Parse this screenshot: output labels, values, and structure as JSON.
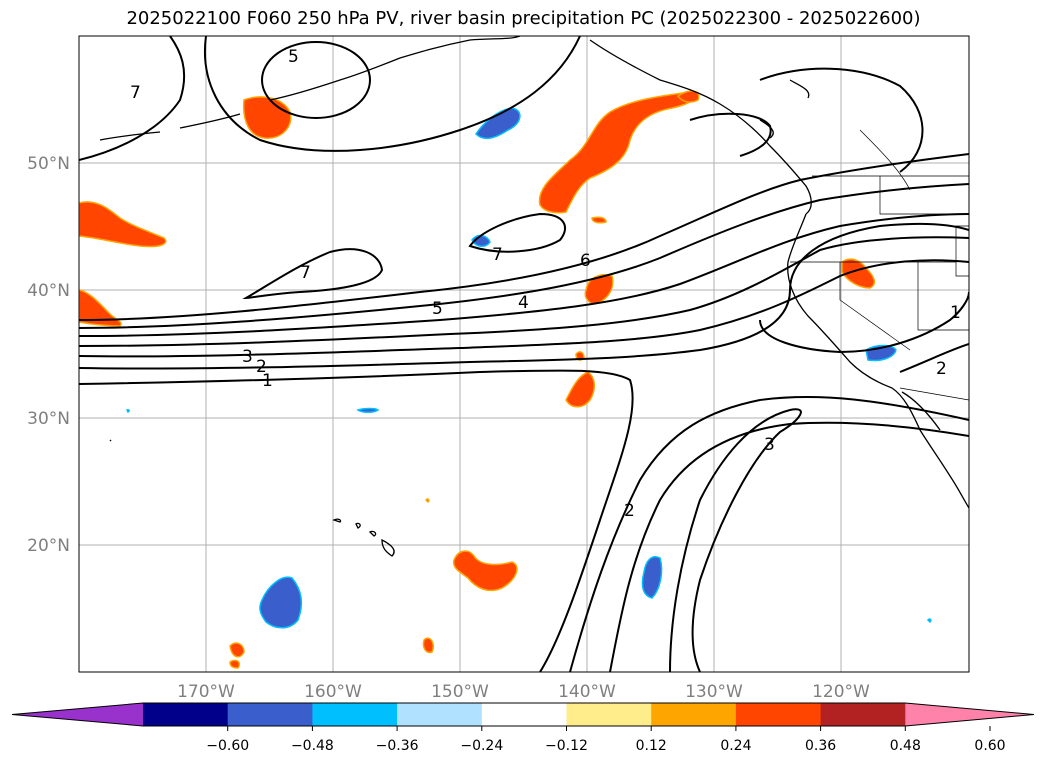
{
  "title": "2025022100 F060 250 hPa PV, river basin precipitation PC (2025022300 - 2025022600)",
  "longitude_labels": [
    "170°W",
    "160°W",
    "150°W",
    "140°W",
    "130°W",
    "120°W"
  ],
  "latitude_labels": [
    "50°N",
    "40°N",
    "30°N",
    "20°N"
  ],
  "map_extent": {
    "lon_range": [
      -180,
      -110
    ],
    "lat_range": [
      10,
      60
    ]
  },
  "grid": true,
  "pv_contour_labels": [
    "5",
    "7",
    "7",
    "7",
    "6",
    "5",
    "4",
    "3",
    "2",
    "1",
    "1",
    "2",
    "2",
    "3"
  ],
  "colorbar": {
    "extend": "both",
    "tick_labels": [
      "−0.60",
      "−0.48",
      "−0.36",
      "−0.24",
      "−0.12",
      "0.12",
      "0.24",
      "0.36",
      "0.48",
      "0.60"
    ],
    "colors": [
      "#9932cc",
      "#00008b",
      "#3a5fcd",
      "#00bfff",
      "#b0e2ff",
      "#ffffff",
      "#ffec8b",
      "#ffa500",
      "#ff4500",
      "#b22222",
      "#ff82ab"
    ]
  }
}
